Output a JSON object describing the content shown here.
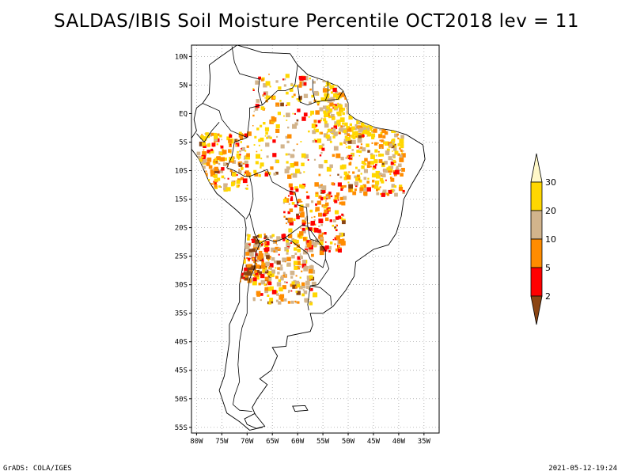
{
  "title": "SALDAS/IBIS Soil Moisture Percentile OCT2018 lev = 11",
  "footer_left": "GrADS: COLA/IGES",
  "footer_right": "2021-05-12-19:24",
  "map": {
    "lon_range": [
      -81,
      -32
    ],
    "lat_range": [
      -56,
      12
    ],
    "lon_ticks": [
      {
        "value": -80,
        "label": "80W"
      },
      {
        "value": -75,
        "label": "75W"
      },
      {
        "value": -70,
        "label": "70W"
      },
      {
        "value": -65,
        "label": "65W"
      },
      {
        "value": -60,
        "label": "60W"
      },
      {
        "value": -55,
        "label": "55W"
      },
      {
        "value": -50,
        "label": "50W"
      },
      {
        "value": -45,
        "label": "45W"
      },
      {
        "value": -40,
        "label": "40W"
      },
      {
        "value": -35,
        "label": "35W"
      }
    ],
    "lat_ticks": [
      {
        "value": 10,
        "label": "10N"
      },
      {
        "value": 5,
        "label": "5N"
      },
      {
        "value": 0,
        "label": "EQ"
      },
      {
        "value": -5,
        "label": "5S"
      },
      {
        "value": -10,
        "label": "10S"
      },
      {
        "value": -15,
        "label": "15S"
      },
      {
        "value": -20,
        "label": "20S"
      },
      {
        "value": -25,
        "label": "25S"
      },
      {
        "value": -30,
        "label": "30S"
      },
      {
        "value": -35,
        "label": "35S"
      },
      {
        "value": -40,
        "label": "40S"
      },
      {
        "value": -45,
        "label": "45S"
      },
      {
        "value": -50,
        "label": "50S"
      },
      {
        "value": -55,
        "label": "55S"
      }
    ],
    "gridlines": "dotted",
    "coastline": [
      [
        -77.5,
        8.5
      ],
      [
        -76,
        9.5
      ],
      [
        -72,
        12
      ],
      [
        -70,
        11.5
      ],
      [
        -67,
        10.7
      ],
      [
        -64,
        10.6
      ],
      [
        -61.5,
        10.5
      ],
      [
        -60,
        8.5
      ],
      [
        -58,
        6.8
      ],
      [
        -55,
        5.9
      ],
      [
        -52,
        4.8
      ],
      [
        -51,
        4
      ],
      [
        -50,
        1.8
      ],
      [
        -50,
        0
      ],
      [
        -48.5,
        -1
      ],
      [
        -44.5,
        -2.5
      ],
      [
        -41,
        -3
      ],
      [
        -38.5,
        -3.7
      ],
      [
        -35.2,
        -5.5
      ],
      [
        -34.8,
        -8
      ],
      [
        -35.5,
        -9.5
      ],
      [
        -37.5,
        -12.5
      ],
      [
        -39,
        -15
      ],
      [
        -39.5,
        -18
      ],
      [
        -40.5,
        -21
      ],
      [
        -42,
        -23
      ],
      [
        -45,
        -23.8
      ],
      [
        -48.5,
        -26
      ],
      [
        -48.8,
        -28.5
      ],
      [
        -50.5,
        -31
      ],
      [
        -53,
        -33.8
      ],
      [
        -55,
        -35
      ],
      [
        -57.5,
        -35
      ],
      [
        -57,
        -37
      ],
      [
        -57.5,
        -38.2
      ],
      [
        -62,
        -39
      ],
      [
        -62.3,
        -40.8
      ],
      [
        -65,
        -41
      ],
      [
        -64,
        -42.5
      ],
      [
        -65.2,
        -45
      ],
      [
        -67.5,
        -46.5
      ],
      [
        -66,
        -47.5
      ],
      [
        -68,
        -50
      ],
      [
        -69,
        -51.5
      ],
      [
        -68.5,
        -52.5
      ],
      [
        -67,
        -55
      ],
      [
        -69.5,
        -55.5
      ],
      [
        -71.5,
        -54
      ],
      [
        -74,
        -52.5
      ],
      [
        -75.5,
        -48.5
      ],
      [
        -74.5,
        -46
      ],
      [
        -74,
        -43
      ],
      [
        -73.5,
        -40
      ],
      [
        -73.5,
        -37
      ],
      [
        -71.5,
        -33
      ],
      [
        -71.5,
        -30
      ],
      [
        -70.5,
        -25
      ],
      [
        -70.2,
        -20
      ],
      [
        -70.5,
        -18.3
      ],
      [
        -72,
        -17
      ],
      [
        -76,
        -14
      ],
      [
        -77.5,
        -12
      ],
      [
        -79.5,
        -8
      ],
      [
        -81.2,
        -6
      ],
      [
        -81,
        -4.3
      ],
      [
        -80,
        -3
      ],
      [
        -80.5,
        -1
      ],
      [
        -80,
        1
      ],
      [
        -78.8,
        1.8
      ],
      [
        -77.5,
        3.5
      ],
      [
        -77.3,
        6.5
      ],
      [
        -77.5,
        8.5
      ]
    ],
    "borders": [
      [
        [
          -73,
          11.8
        ],
        [
          -72.5,
          9
        ],
        [
          -71.5,
          7
        ],
        [
          -67.5,
          6
        ],
        [
          -67.8,
          4
        ],
        [
          -67,
          1.5
        ],
        [
          -69.5,
          1
        ],
        [
          -69.5,
          -0.5
        ],
        [
          -70,
          -4.2
        ]
      ],
      [
        [
          -78.8,
          1.8
        ],
        [
          -75.5,
          0.5
        ],
        [
          -75,
          -1
        ],
        [
          -73.2,
          -3
        ],
        [
          -70,
          -4.2
        ]
      ],
      [
        [
          -80,
          -3.5
        ],
        [
          -78.5,
          -5
        ],
        [
          -77,
          -3
        ],
        [
          -75.5,
          -1.5
        ]
      ],
      [
        [
          -67,
          1.5
        ],
        [
          -64,
          4
        ],
        [
          -62.5,
          4
        ],
        [
          -61,
          4.5
        ],
        [
          -60.5,
          5.2
        ],
        [
          -60,
          8.5
        ]
      ],
      [
        [
          -60,
          5
        ],
        [
          -59.5,
          2
        ],
        [
          -58,
          1.5
        ],
        [
          -56.5,
          2
        ],
        [
          -54.5,
          2.3
        ],
        [
          -52,
          2.5
        ],
        [
          -51,
          4
        ]
      ],
      [
        [
          -57,
          6
        ],
        [
          -57,
          4
        ],
        [
          -56.5,
          2
        ]
      ],
      [
        [
          -54,
          5.8
        ],
        [
          -54,
          3.5
        ],
        [
          -54.5,
          2.3
        ]
      ],
      [
        [
          -70,
          -4.2
        ],
        [
          -72.5,
          -5
        ],
        [
          -73,
          -7.5
        ],
        [
          -74,
          -9.5
        ],
        [
          -72.5,
          -10
        ],
        [
          -70.5,
          -11
        ],
        [
          -69.5,
          -11
        ],
        [
          -69,
          -13
        ],
        [
          -68.8,
          -15
        ],
        [
          -69.5,
          -17.5
        ],
        [
          -70.2,
          -18.5
        ]
      ],
      [
        [
          -69.5,
          -11
        ],
        [
          -66,
          -9.8
        ],
        [
          -65,
          -12
        ],
        [
          -62,
          -13.5
        ],
        [
          -60.5,
          -13.8
        ],
        [
          -60,
          -16
        ],
        [
          -58.2,
          -16.5
        ],
        [
          -58,
          -19.8
        ],
        [
          -59,
          -19.5
        ],
        [
          -62.5,
          -21.8
        ],
        [
          -64.5,
          -22.5
        ],
        [
          -66,
          -22
        ],
        [
          -67.5,
          -22.8
        ],
        [
          -68.5,
          -21
        ],
        [
          -69.5,
          -17.5
        ]
      ],
      [
        [
          -62.5,
          -21.8
        ],
        [
          -61,
          -22.5
        ],
        [
          -58,
          -24.5
        ],
        [
          -57.5,
          -25.5
        ],
        [
          -55,
          -27
        ],
        [
          -54.5,
          -25.5
        ],
        [
          -54.5,
          -24
        ],
        [
          -55.8,
          -22.5
        ],
        [
          -58,
          -19.8
        ]
      ],
      [
        [
          -58,
          -19.8
        ],
        [
          -57.5,
          -22
        ],
        [
          -55.8,
          -22.5
        ]
      ],
      [
        [
          -54.5,
          -25.5
        ],
        [
          -53.8,
          -27.2
        ],
        [
          -56,
          -30
        ],
        [
          -57.5,
          -30.2
        ],
        [
          -58,
          -33.5
        ],
        [
          -57.8,
          -34.5
        ]
      ],
      [
        [
          -57.5,
          -30.2
        ],
        [
          -55.5,
          -30.5
        ],
        [
          -53.5,
          -32
        ],
        [
          -53.3,
          -33.7
        ]
      ],
      [
        [
          -67.5,
          -22.8
        ],
        [
          -68.3,
          -24.5
        ],
        [
          -68.5,
          -27
        ],
        [
          -69.5,
          -29
        ],
        [
          -70,
          -32
        ],
        [
          -70,
          -35
        ],
        [
          -71,
          -37.5
        ],
        [
          -71.5,
          -40
        ],
        [
          -71.8,
          -44
        ],
        [
          -71.5,
          -47
        ],
        [
          -72.5,
          -49.5
        ],
        [
          -72.8,
          -51
        ],
        [
          -71.5,
          -52
        ],
        [
          -69,
          -52.2
        ]
      ]
    ],
    "islands": [
      [
        [
          -68.5,
          -52.6
        ],
        [
          -66.5,
          -54.8
        ],
        [
          -68.2,
          -55.2
        ],
        [
          -70,
          -54.5
        ],
        [
          -70.5,
          -53.5
        ],
        [
          -68.5,
          -52.6
        ]
      ],
      [
        [
          -61,
          -51.3
        ],
        [
          -58.5,
          -51.2
        ],
        [
          -58,
          -52
        ],
        [
          -60.5,
          -52.2
        ],
        [
          -61,
          -51.3
        ]
      ]
    ]
  },
  "colorbar": {
    "levels": [
      {
        "color": "#fff8c8",
        "label": "30"
      },
      {
        "color": "#ffd700",
        "label": "20"
      },
      {
        "color": "#d2b48c",
        "label": "10"
      },
      {
        "color": "#ff8c00",
        "label": "5"
      },
      {
        "color": "#ff0000",
        "label": "2"
      },
      {
        "color": "#8b4513",
        "label": ""
      }
    ]
  },
  "fill_colors": [
    "#ffd700",
    "#d2b48c",
    "#ff8c00",
    "#ff0000",
    "#8b4513"
  ]
}
